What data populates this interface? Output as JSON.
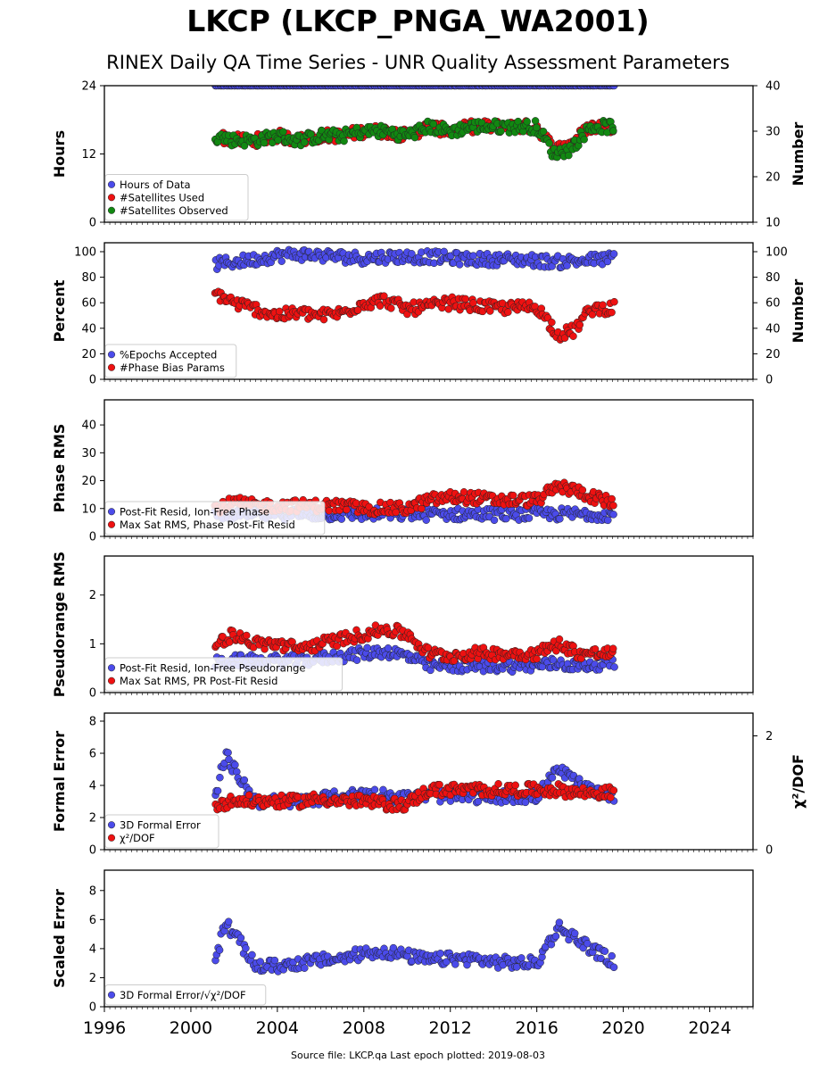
{
  "title": "LKCP (LKCP_PNGA_WA2001)",
  "subtitle": "RINEX Daily QA Time Series - UNR Quality Assessment Parameters",
  "footer": "Source file: LKCP.qa Last epoch plotted: 2019-08-03",
  "colors": {
    "blue": "#4b4bea",
    "red": "#ee1111",
    "green": "#118811"
  },
  "chart_data": [
    {
      "type": "scatter",
      "id": "hours",
      "ylabel": "Hours",
      "ylabel_right": "Number",
      "ylim": [
        0,
        24
      ],
      "yticks": [
        0,
        12,
        24
      ],
      "ylim_right": [
        10,
        40
      ],
      "yticks_right": [
        10,
        20,
        30,
        40
      ],
      "xlim": [
        1996,
        2026
      ],
      "legend": [
        "Hours of Data",
        "#Satellites Used",
        "#Satellites Observed"
      ],
      "series": [
        {
          "name": "Hours of Data",
          "color": "blue",
          "axis": "left",
          "x": [
            2001.1,
            2002.0,
            2003.0,
            2004.0,
            2005.0,
            2006.0,
            2007.0,
            2008.0,
            2009.0,
            2010.0,
            2011.0,
            2012.0,
            2013.0,
            2014.0,
            2015.0,
            2016.0,
            2016.8,
            2017.5,
            2018.5,
            2019.6
          ],
          "y": [
            24,
            24,
            24,
            24,
            24,
            24,
            24,
            24,
            24,
            24,
            24,
            24,
            24,
            24,
            24,
            24,
            24,
            24,
            24,
            24
          ]
        },
        {
          "name": "#Satellites Used",
          "color": "red",
          "axis": "right",
          "x": [
            2001.1,
            2002.0,
            2003.0,
            2004.0,
            2005.0,
            2006.0,
            2007.0,
            2008.0,
            2009.0,
            2010.0,
            2011.0,
            2012.0,
            2013.0,
            2014.0,
            2015.0,
            2016.0,
            2016.8,
            2017.5,
            2018.5,
            2019.6
          ],
          "y": [
            29,
            28,
            28,
            29,
            28,
            29,
            29,
            30,
            30,
            29,
            31,
            30,
            31,
            31,
            31,
            31,
            26,
            27,
            31,
            31
          ]
        },
        {
          "name": "#Satellites Observed",
          "color": "green",
          "axis": "right",
          "x": [
            2001.1,
            2002.0,
            2003.0,
            2004.0,
            2005.0,
            2006.0,
            2007.0,
            2008.0,
            2009.0,
            2010.0,
            2011.0,
            2012.0,
            2013.0,
            2014.0,
            2015.0,
            2016.0,
            2016.8,
            2017.5,
            2018.5,
            2019.6
          ],
          "y": [
            29,
            28,
            28,
            29,
            28,
            29,
            29,
            30,
            30,
            29,
            31,
            30,
            31,
            31,
            31,
            31,
            25,
            26,
            31,
            31
          ]
        }
      ]
    },
    {
      "type": "scatter",
      "id": "percent",
      "ylabel": "Percent",
      "ylabel_right": "Number",
      "ylim": [
        0,
        107
      ],
      "yticks": [
        0,
        20,
        40,
        60,
        80,
        100
      ],
      "ylim_right": [
        0,
        107
      ],
      "yticks_right": [
        0,
        20,
        40,
        60,
        80,
        100
      ],
      "xlim": [
        1996,
        2026
      ],
      "legend": [
        "%Epochs Accepted",
        "#Phase Bias Params"
      ],
      "series": [
        {
          "name": "%Epochs Accepted",
          "color": "blue",
          "axis": "left",
          "x": [
            2001.1,
            2002.0,
            2003.0,
            2004.0,
            2005.0,
            2006.0,
            2007.0,
            2008.0,
            2009.0,
            2010.0,
            2011.0,
            2012.0,
            2013.0,
            2014.0,
            2015.0,
            2016.0,
            2017.0,
            2018.0,
            2019.0,
            2019.6
          ],
          "y": [
            90,
            92,
            94,
            97,
            98,
            97,
            96,
            95,
            96,
            96,
            96,
            95,
            94,
            94,
            94,
            93,
            92,
            93,
            94,
            95
          ]
        },
        {
          "name": "#Phase Bias Params",
          "color": "red",
          "axis": "right",
          "x": [
            2001.1,
            2002.0,
            2003.0,
            2004.0,
            2005.0,
            2006.0,
            2007.0,
            2008.0,
            2009.0,
            2010.0,
            2011.0,
            2012.0,
            2013.0,
            2014.0,
            2015.0,
            2016.0,
            2017.0,
            2017.7,
            2018.5,
            2019.6
          ],
          "y": [
            68,
            60,
            55,
            50,
            52,
            50,
            52,
            60,
            62,
            55,
            57,
            60,
            58,
            56,
            56,
            57,
            35,
            38,
            55,
            56
          ]
        }
      ]
    },
    {
      "type": "scatter",
      "id": "phase",
      "ylabel": "Phase RMS",
      "ylim": [
        0,
        49
      ],
      "yticks": [
        0,
        10,
        20,
        30,
        40
      ],
      "xlim": [
        1996,
        2026
      ],
      "legend": [
        "Post-Fit Resid, Ion-Free Phase",
        "Max Sat RMS, Phase Post-Fit Resid"
      ],
      "series": [
        {
          "name": "Post-Fit Resid, Ion-Free Phase",
          "color": "blue",
          "axis": "left",
          "x": [
            2001.1,
            2002.0,
            2003.0,
            2004.0,
            2005.0,
            2006.0,
            2007.0,
            2008.0,
            2009.0,
            2010.0,
            2011.0,
            2012.0,
            2013.0,
            2014.0,
            2015.0,
            2016.0,
            2017.0,
            2018.0,
            2019.0,
            2019.6
          ],
          "y": [
            8,
            8,
            8,
            8,
            8,
            8,
            8,
            8,
            8,
            8,
            8,
            8,
            8,
            8,
            8,
            8,
            8,
            8,
            8,
            8
          ]
        },
        {
          "name": "Max Sat RMS, Phase Post-Fit Resid",
          "color": "red",
          "axis": "left",
          "x": [
            2001.1,
            2002.0,
            2003.0,
            2004.0,
            2005.0,
            2006.0,
            2007.0,
            2008.0,
            2009.0,
            2010.0,
            2011.0,
            2012.0,
            2013.0,
            2014.0,
            2015.0,
            2016.0,
            2017.0,
            2018.0,
            2019.0,
            2019.6
          ],
          "y": [
            10,
            12,
            11,
            11,
            11,
            11,
            11,
            10,
            10,
            10,
            13,
            14,
            14,
            13,
            13,
            13,
            18,
            16,
            13,
            12
          ]
        }
      ]
    },
    {
      "type": "scatter",
      "id": "pseudorange",
      "ylabel": "Pseudorange RMS",
      "ylim": [
        0,
        2.8
      ],
      "yticks": [
        0,
        1,
        2
      ],
      "xlim": [
        1996,
        2026
      ],
      "legend": [
        "Post-Fit Resid, Ion-Free Pseudorange",
        "Max Sat RMS, PR Post-Fit Resid"
      ],
      "series": [
        {
          "name": "Post-Fit Resid, Ion-Free Pseudorange",
          "color": "blue",
          "axis": "left",
          "x": [
            2001.1,
            2002.0,
            2003.0,
            2004.0,
            2005.0,
            2006.0,
            2007.0,
            2008.0,
            2009.0,
            2010.0,
            2011.0,
            2012.0,
            2013.0,
            2014.0,
            2015.0,
            2016.0,
            2017.0,
            2018.0,
            2019.0,
            2019.6
          ],
          "y": [
            0.6,
            0.65,
            0.65,
            0.65,
            0.65,
            0.7,
            0.75,
            0.8,
            0.85,
            0.75,
            0.55,
            0.55,
            0.55,
            0.55,
            0.55,
            0.55,
            0.6,
            0.55,
            0.6,
            0.6
          ]
        },
        {
          "name": "Max Sat RMS, PR Post-Fit Resid",
          "color": "red",
          "axis": "left",
          "x": [
            2001.1,
            2002.0,
            2003.0,
            2004.0,
            2005.0,
            2006.0,
            2007.0,
            2008.0,
            2009.0,
            2010.0,
            2011.0,
            2012.0,
            2013.0,
            2014.0,
            2015.0,
            2016.0,
            2017.0,
            2018.0,
            2019.0,
            2019.6
          ],
          "y": [
            1.0,
            1.2,
            1.0,
            1.0,
            0.9,
            1.0,
            1.1,
            1.2,
            1.3,
            1.2,
            0.8,
            0.75,
            0.8,
            0.8,
            0.8,
            0.8,
            1.0,
            0.8,
            0.8,
            0.8
          ]
        }
      ]
    },
    {
      "type": "scatter",
      "id": "formal",
      "ylabel": "Formal Error",
      "ylabel_right": "χ²/DOF",
      "ylim": [
        0,
        8.5
      ],
      "yticks": [
        0,
        2,
        4,
        6,
        8
      ],
      "ylim_right": [
        0,
        2.4
      ],
      "yticks_right": [
        0,
        2
      ],
      "xlim": [
        1996,
        2026
      ],
      "legend": [
        "3D Formal Error",
        "χ²/DOF"
      ],
      "series": [
        {
          "name": "3D Formal Error",
          "color": "blue",
          "axis": "left",
          "x": [
            2001.1,
            2001.6,
            2002.0,
            2003.0,
            2004.0,
            2005.0,
            2006.0,
            2007.0,
            2008.0,
            2009.0,
            2010.0,
            2011.0,
            2012.0,
            2013.0,
            2014.0,
            2015.0,
            2016.0,
            2017.0,
            2018.0,
            2019.6
          ],
          "y": [
            3.0,
            6.0,
            5.0,
            3.0,
            3.0,
            3.0,
            3.2,
            3.3,
            3.5,
            3.4,
            3.2,
            3.4,
            3.3,
            3.3,
            3.3,
            3.3,
            3.3,
            5.0,
            4.0,
            3.3
          ]
        },
        {
          "name": "χ²/DOF",
          "color": "red",
          "axis": "right",
          "x": [
            2001.1,
            2002.0,
            2003.0,
            2004.0,
            2005.0,
            2006.0,
            2007.0,
            2008.0,
            2009.0,
            2010.0,
            2011.0,
            2012.0,
            2013.0,
            2014.0,
            2015.0,
            2016.0,
            2017.0,
            2018.0,
            2019.0,
            2019.6
          ],
          "y": [
            0.8,
            0.85,
            0.85,
            0.85,
            0.85,
            0.9,
            0.85,
            0.85,
            0.8,
            0.8,
            1.05,
            1.05,
            1.05,
            1.05,
            1.05,
            1.05,
            1.05,
            1.0,
            1.0,
            1.0
          ]
        }
      ]
    },
    {
      "type": "scatter",
      "id": "scaled",
      "ylabel": "Scaled Error",
      "ylim": [
        0,
        9.4
      ],
      "yticks": [
        0,
        2,
        4,
        6,
        8
      ],
      "xlim": [
        1996,
        2026
      ],
      "xticks": [
        1996,
        2000,
        2004,
        2008,
        2012,
        2016,
        2020,
        2024
      ],
      "legend": [
        "3D Formal Error/√χ²/DOF"
      ],
      "series": [
        {
          "name": "3D Formal Error/√χ²/DOF",
          "color": "blue",
          "axis": "left",
          "x": [
            2001.1,
            2001.6,
            2002.0,
            2003.0,
            2004.0,
            2005.0,
            2006.0,
            2007.0,
            2008.0,
            2009.0,
            2010.0,
            2011.0,
            2012.0,
            2013.0,
            2014.0,
            2015.0,
            2016.0,
            2017.0,
            2018.0,
            2019.6
          ],
          "y": [
            3.0,
            5.8,
            5.0,
            2.8,
            2.8,
            3.0,
            3.2,
            3.3,
            3.7,
            3.8,
            3.5,
            3.2,
            3.3,
            3.3,
            3.1,
            3.0,
            3.0,
            5.5,
            4.5,
            3.0
          ]
        }
      ]
    }
  ]
}
